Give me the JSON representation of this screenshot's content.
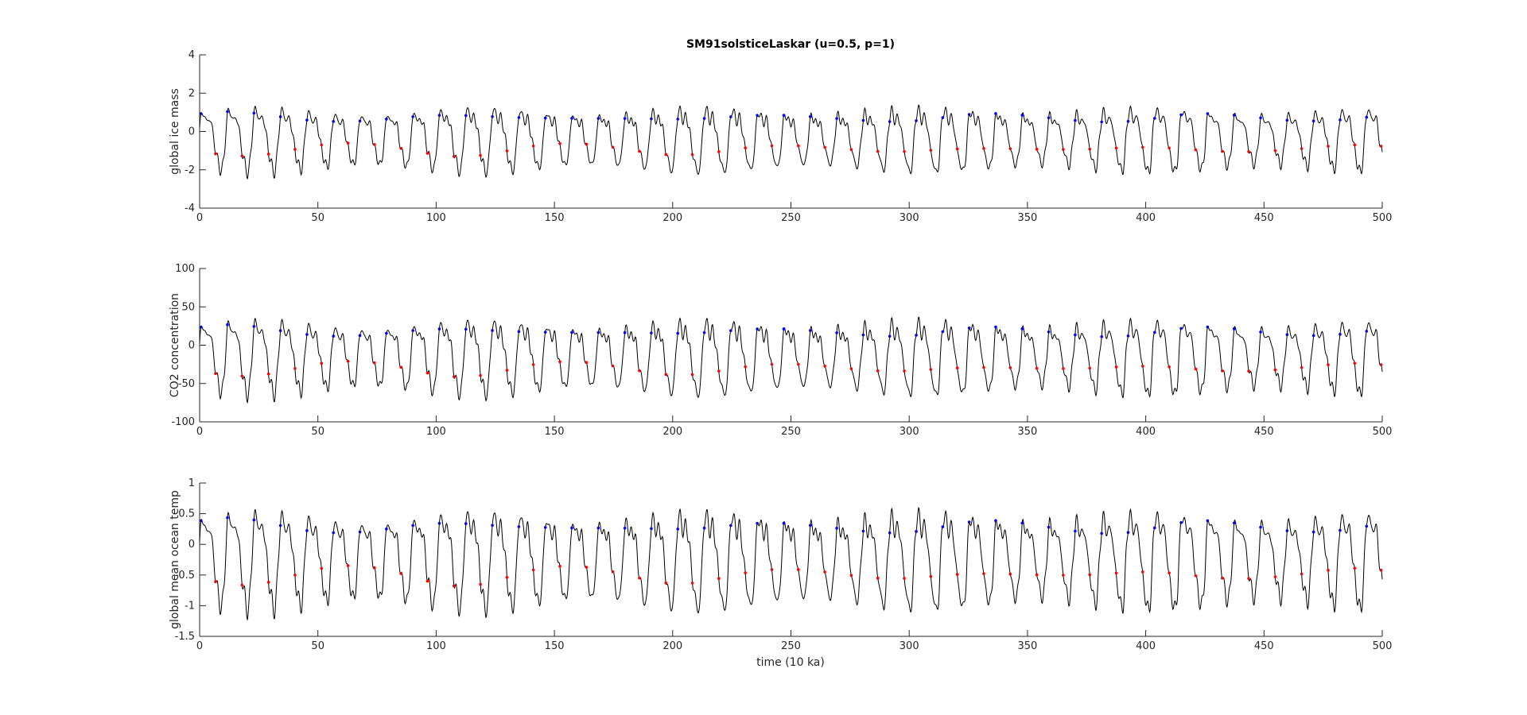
{
  "figure": {
    "title": "SM91solsticeLaskar (u=0.5, p=1)",
    "xlabel": "time (10 ka)"
  },
  "chart_data": [
    {
      "type": "line",
      "ylabel": "global ice mass",
      "xlim": [
        0,
        500
      ],
      "ylim": [
        -4,
        4
      ],
      "xticks": [
        0,
        50,
        100,
        150,
        200,
        250,
        300,
        350,
        400,
        450,
        500
      ],
      "yticks": [
        -4,
        -2,
        0,
        2,
        4
      ],
      "period": 11.2,
      "amplitude": 2.0,
      "offset": -0.3,
      "series": [
        {
          "color": "#000000"
        }
      ],
      "markers": {
        "blue": "#0000ff",
        "red": "#ff0000"
      }
    },
    {
      "type": "line",
      "ylabel": "CO2 concentration",
      "xlim": [
        0,
        500
      ],
      "ylim": [
        -100,
        100
      ],
      "xticks": [
        0,
        50,
        100,
        150,
        200,
        250,
        300,
        350,
        400,
        450,
        500
      ],
      "yticks": [
        -100,
        -50,
        0,
        50,
        100
      ],
      "period": 11.2,
      "amplitude": 58,
      "offset": -12,
      "series": [
        {
          "color": "#000000"
        }
      ],
      "markers": {
        "blue": "#0000ff",
        "red": "#ff0000"
      }
    },
    {
      "type": "line",
      "ylabel": "global mean ocean temp",
      "xlim": [
        0,
        500
      ],
      "ylim": [
        -1.5,
        1
      ],
      "xticks": [
        0,
        50,
        100,
        150,
        200,
        250,
        300,
        350,
        400,
        450,
        500
      ],
      "yticks": [
        -1.5,
        -1,
        -0.5,
        0,
        0.5,
        1
      ],
      "period": 11.2,
      "amplitude": 0.95,
      "offset": -0.2,
      "series": [
        {
          "color": "#000000"
        }
      ],
      "markers": {
        "blue": "#0000ff",
        "red": "#ff0000"
      }
    }
  ]
}
